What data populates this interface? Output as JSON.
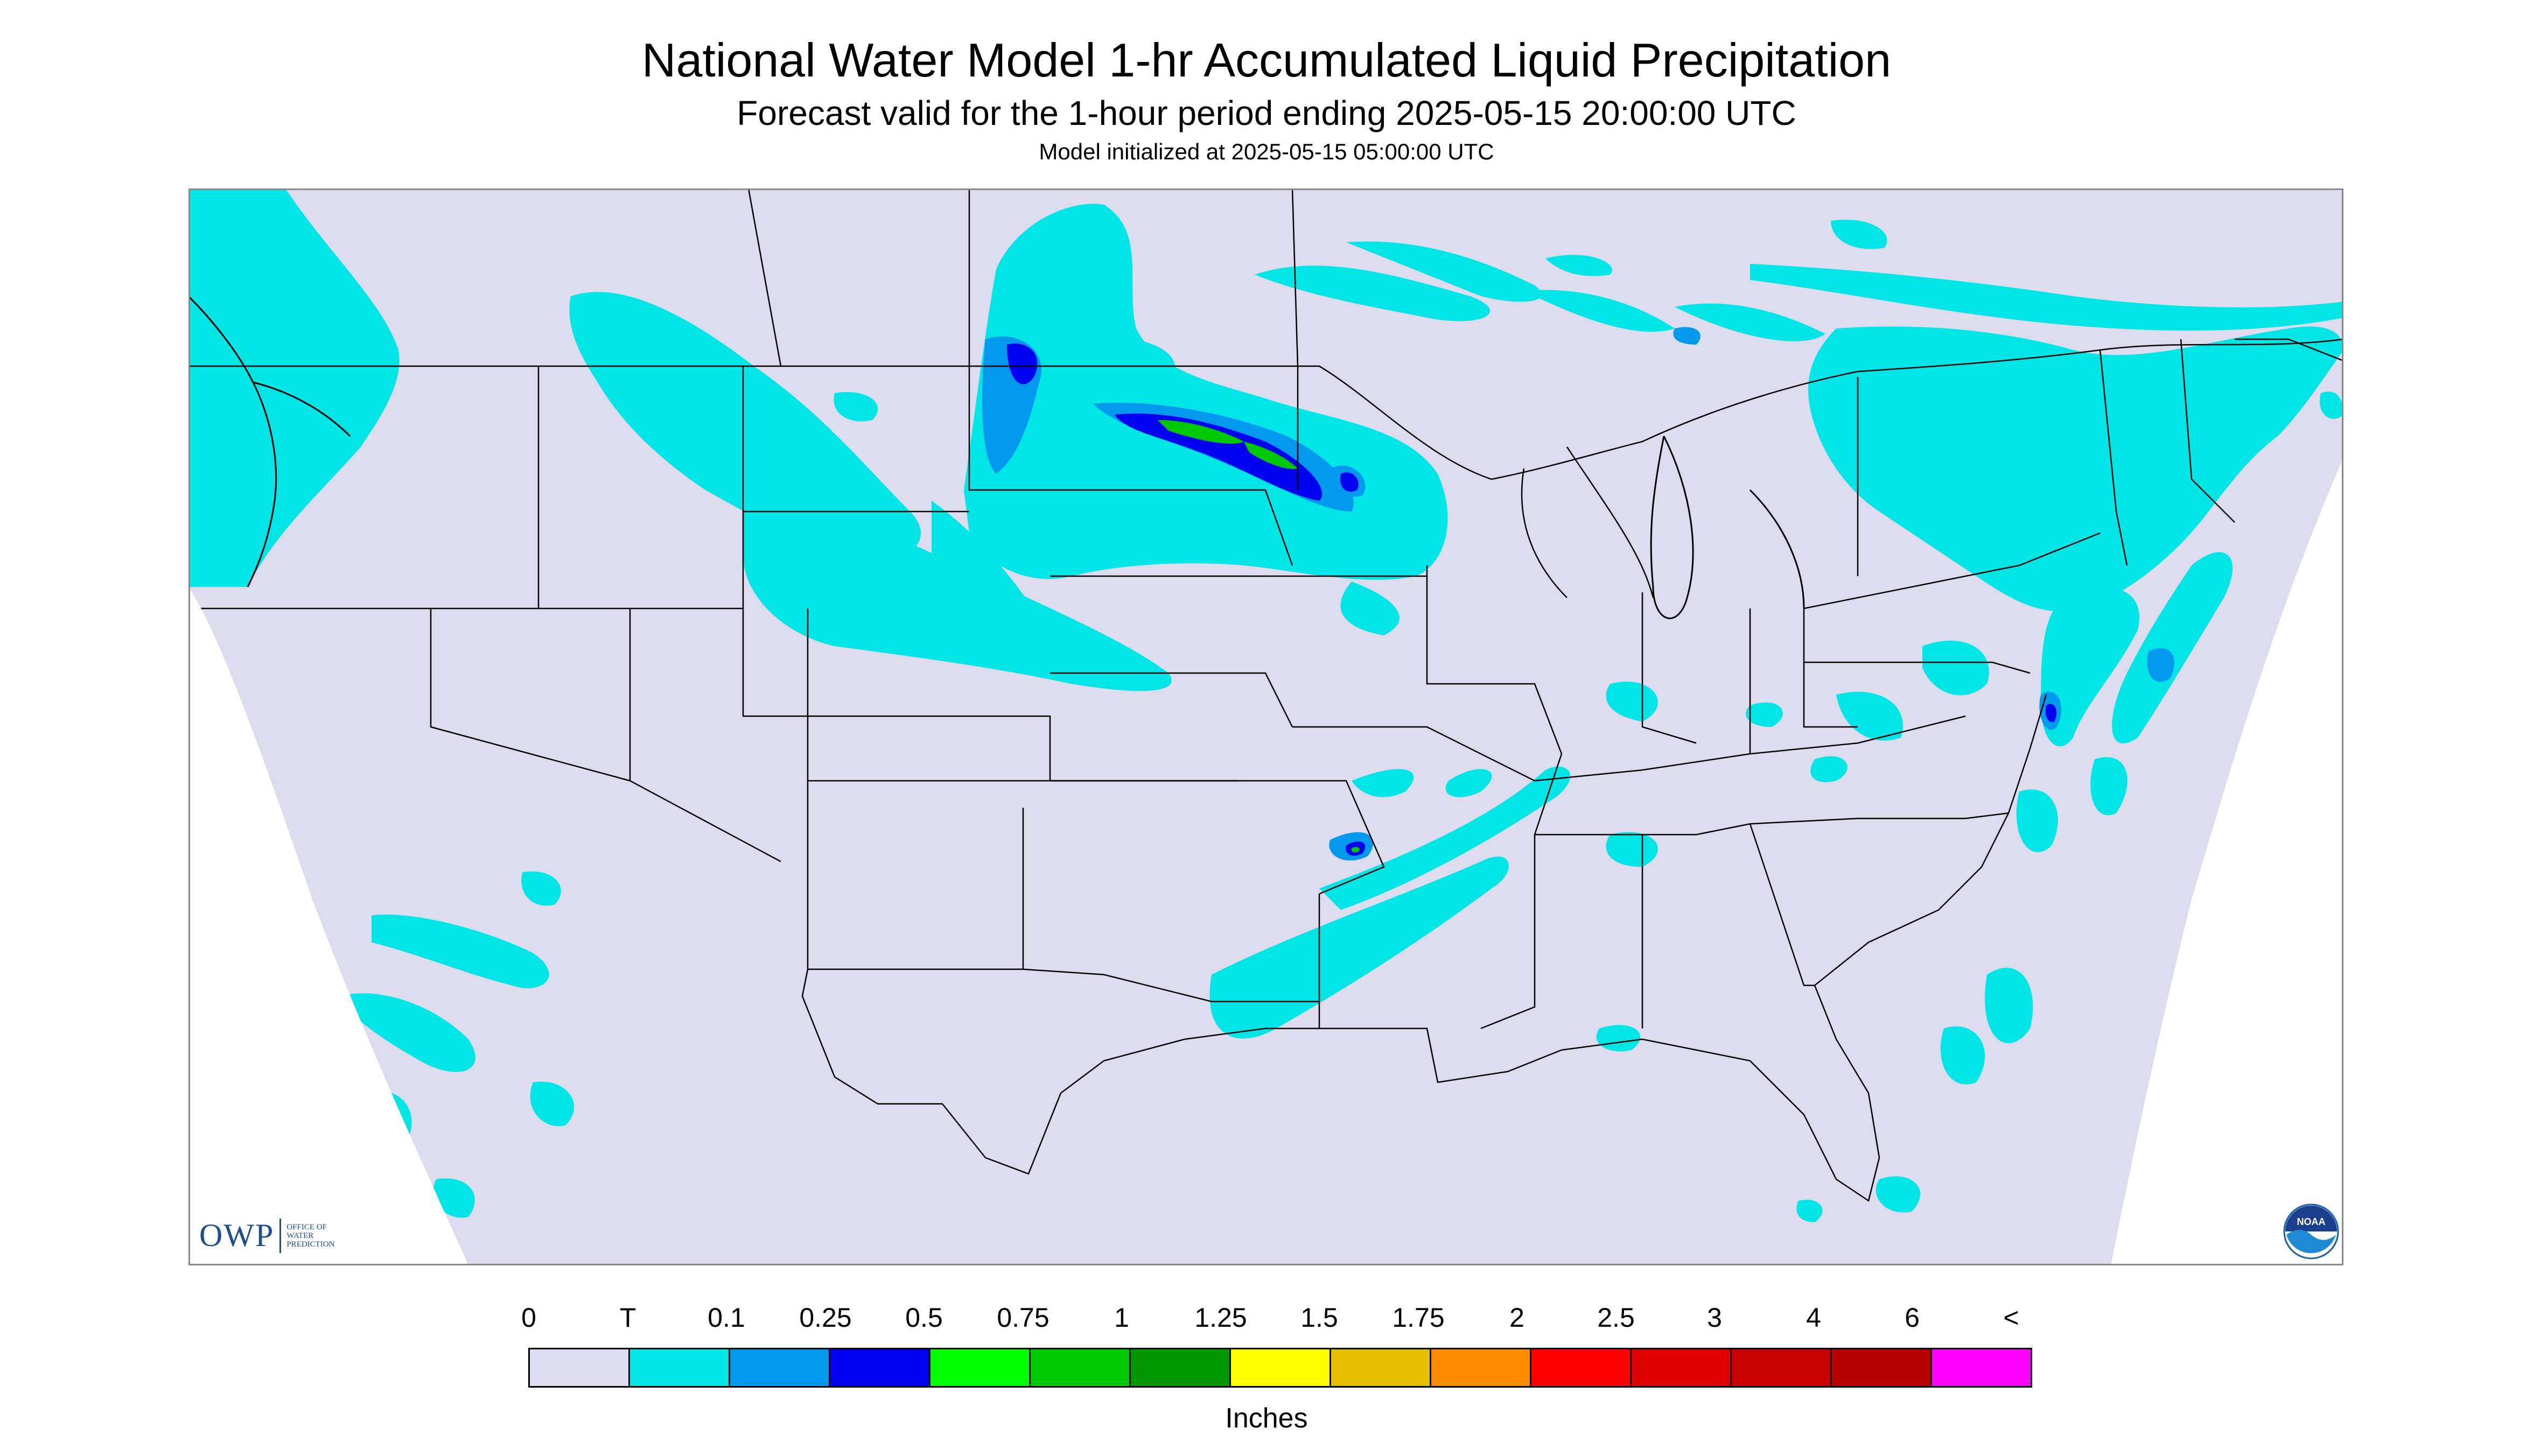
{
  "header": {
    "title": "National Water Model 1-hr Accumulated Liquid Precipitation",
    "subtitle": "Forecast valid for the 1-hour period ending 2025-05-15 20:00:00 UTC",
    "init": "Model initialized at 2025-05-15 05:00:00 UTC"
  },
  "logos": {
    "owp_mark": "OWP",
    "owp_text": [
      "Office of",
      "Water",
      "Prediction"
    ],
    "noaa_text": "NOAA"
  },
  "map": {
    "background_color": "#dcdcee",
    "outside_color": "#ffffff",
    "boundary_color": "#000000"
  },
  "legend": {
    "labels": [
      "0",
      "T",
      "0.1",
      "0.25",
      "0.5",
      "0.75",
      "1",
      "1.25",
      "1.5",
      "1.75",
      "2",
      "2.5",
      "3",
      "4",
      "6",
      "<"
    ],
    "colors": [
      "#dcdcee",
      "#00e6e6",
      "#0099ee",
      "#0000f0",
      "#00ff00",
      "#00c800",
      "#009600",
      "#ffff00",
      "#e6be00",
      "#ff8c00",
      "#ff0000",
      "#dc0000",
      "#c80000",
      "#b40000",
      "#ff00ff",
      "#9955cc"
    ],
    "units": "Inches"
  }
}
